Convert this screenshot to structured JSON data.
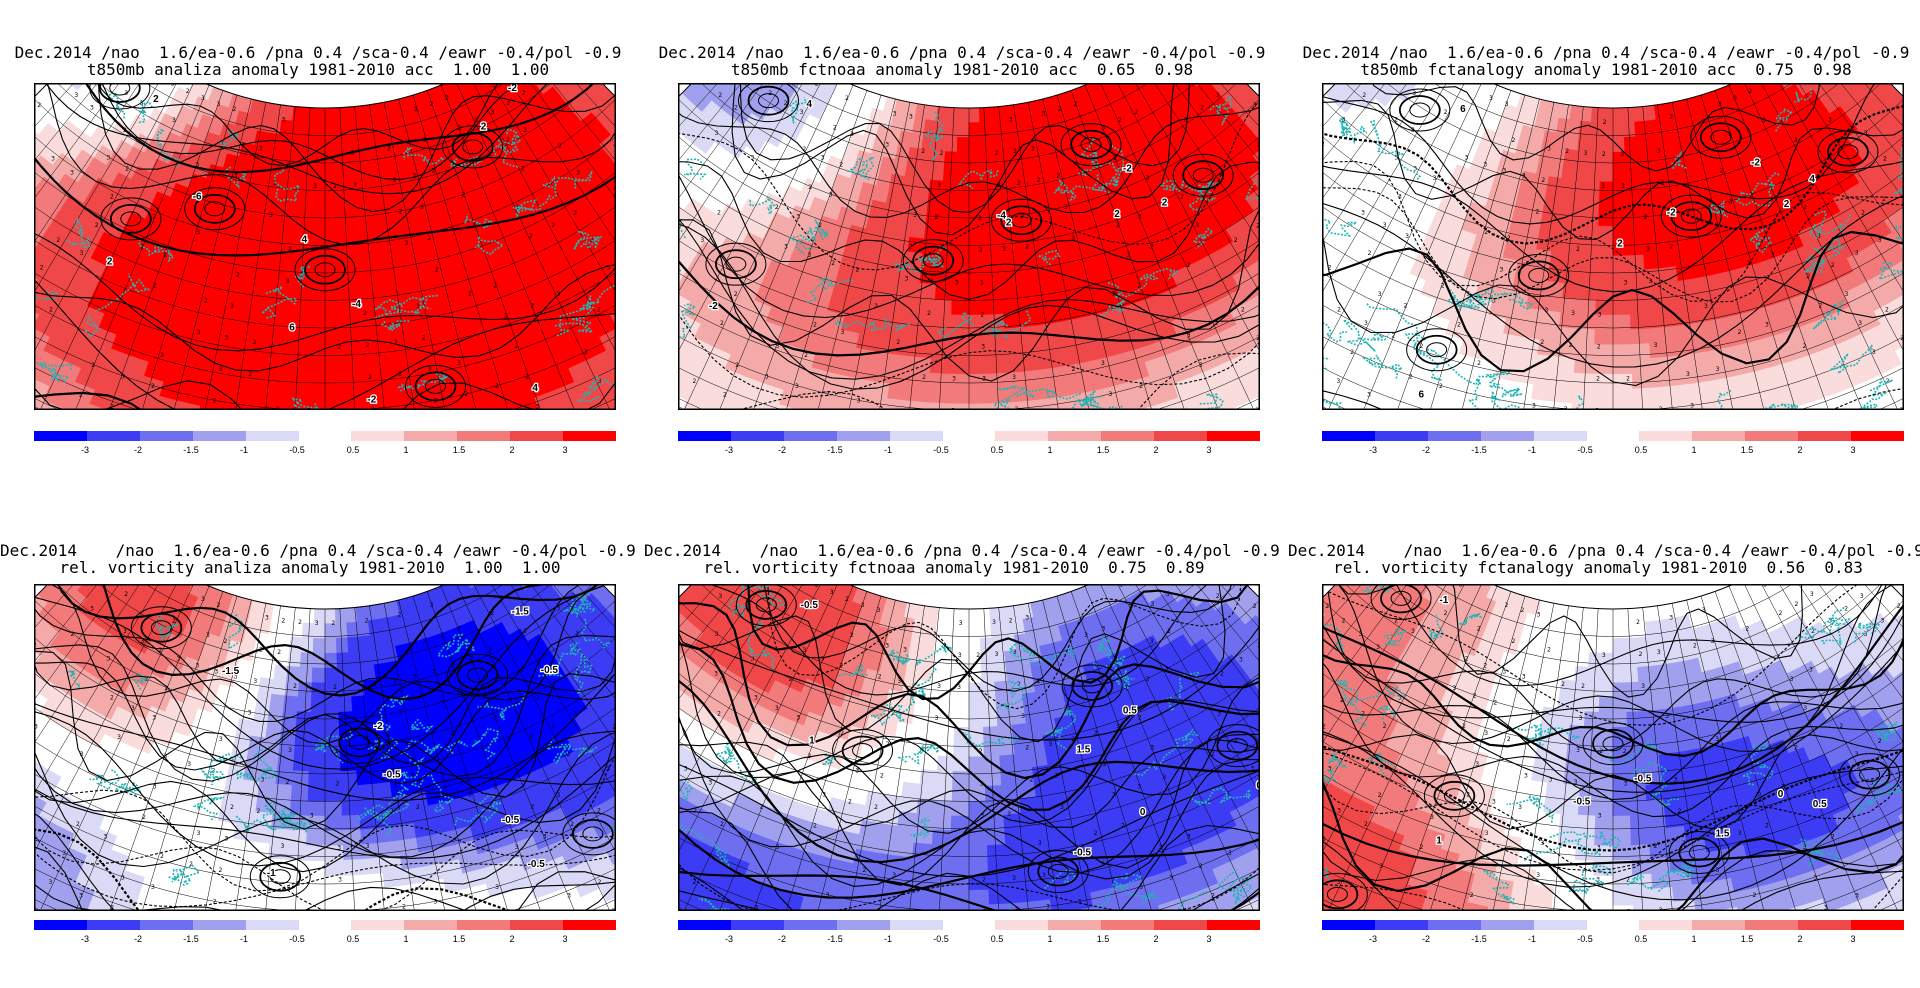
{
  "panels": [
    {
      "title_line1": "Dec.2014 /nao  1.6/ea-0.6 /pna 0.4 /sca-0.4 /eawr -0.4/pol -0.9",
      "title_line2": "t850mb analiza anomaly 1981-2010 acc  1.00  1.00",
      "field": "t850mb",
      "source": "analiza",
      "acc": [
        1.0,
        1.0
      ],
      "pattern": [
        [
          0.1,
          0.12,
          -2.6,
          0.6
        ],
        [
          0.33,
          0.3,
          2.0,
          0.7
        ],
        [
          0.5,
          0.42,
          2.6,
          0.8
        ],
        [
          0.76,
          0.18,
          2.4,
          0.7
        ],
        [
          0.62,
          0.75,
          2.0,
          0.6
        ],
        [
          0.22,
          0.4,
          0.4,
          0.5
        ]
      ],
      "contour_labels": [
        "-4",
        "-6",
        "-4",
        "-2",
        "-2",
        "2",
        "2",
        "4",
        "6",
        "2",
        "4"
      ]
    },
    {
      "title_line1": "Dec.2014 /nao  1.6/ea-0.6 /pna 0.4 /sca-0.4 /eawr -0.4/pol -0.9",
      "title_line2": "t850mb fctnoaa anomaly 1981-2010 acc  0.65  0.98",
      "field": "t850mb",
      "source": "fctnoaa",
      "acc": [
        0.65,
        0.98
      ],
      "pattern": [
        [
          0.12,
          0.14,
          -2.2,
          0.6
        ],
        [
          0.58,
          0.3,
          1.8,
          0.7
        ],
        [
          0.72,
          0.15,
          2.4,
          0.6
        ],
        [
          0.45,
          0.4,
          1.1,
          0.8
        ],
        [
          0.86,
          0.35,
          1.0,
          0.5
        ],
        [
          0.2,
          0.55,
          0.6,
          0.5
        ]
      ],
      "contour_labels": [
        "-6",
        "-4",
        "-2",
        "2",
        "2",
        "-2",
        "4",
        "2"
      ]
    },
    {
      "title_line1": "Dec.2014 /nao  1.6/ea-0.6 /pna 0.4 /sca-0.4 /eawr -0.4/pol -0.9",
      "title_line2": "t850mb fctanalogy anomaly 1981-2010 acc  0.75  0.98",
      "field": "t850mb",
      "source": "fctanalogy",
      "acc": [
        0.75,
        0.98
      ],
      "pattern": [
        [
          0.14,
          0.15,
          -1.0,
          0.6
        ],
        [
          0.62,
          0.3,
          1.6,
          0.7
        ],
        [
          0.7,
          0.12,
          2.2,
          0.6
        ],
        [
          0.4,
          0.45,
          0.8,
          0.6
        ],
        [
          0.88,
          0.3,
          0.7,
          0.5
        ],
        [
          0.3,
          0.7,
          -0.5,
          0.5
        ]
      ],
      "contour_labels": [
        "-4",
        "-2",
        "-2",
        "2",
        "4",
        "6",
        "6",
        "2"
      ]
    },
    {
      "title_line1": "Dec.2014    /nao  1.6/ea-0.6 /pna 0.4 /sca-0.4 /eawr -0.4/pol -0.9",
      "title_line2": "rel. vorticity analiza anomaly 1981-2010  1.00  1.00",
      "field": "rel. vorticity",
      "source": "analiza",
      "acc": [
        1.0,
        1.0
      ],
      "pattern": [
        [
          0.2,
          0.15,
          2.6,
          0.6
        ],
        [
          0.1,
          0.9,
          -2.4,
          0.6
        ],
        [
          0.55,
          0.35,
          -2.6,
          0.5
        ],
        [
          0.75,
          0.25,
          -2.4,
          0.6
        ],
        [
          0.8,
          0.75,
          -1.8,
          0.6
        ],
        [
          0.45,
          0.7,
          1.2,
          0.6
        ],
        [
          0.6,
          0.95,
          1.6,
          0.5
        ]
      ],
      "contour_labels": [
        "1.5",
        "-2",
        "-0.5",
        "-1.5",
        "-0.5",
        "0.5",
        "1",
        "-1.5",
        "0.5",
        "-2",
        "-0.5",
        "-0.5",
        "-1"
      ]
    },
    {
      "title_line1": "Dec.2014    /nao  1.6/ea-0.6 /pna 0.4 /sca-0.4 /eawr -0.4/pol -0.9",
      "title_line2": "rel. vorticity fctnoaa anomaly 1981-2010  0.75  0.89",
      "field": "rel. vorticity",
      "source": "fctnoaa",
      "acc": [
        0.75,
        0.89
      ],
      "pattern": [
        [
          0.12,
          0.15,
          2.6,
          0.6
        ],
        [
          0.15,
          0.85,
          -2.4,
          0.6
        ],
        [
          0.7,
          0.25,
          -2.0,
          0.6
        ],
        [
          0.6,
          0.7,
          -1.4,
          0.5
        ],
        [
          0.35,
          0.4,
          0.8,
          0.6
        ],
        [
          0.85,
          0.55,
          -1.0,
          0.5
        ]
      ],
      "contour_labels": [
        "-3",
        "-0.5",
        "0.5",
        "0",
        "1",
        "0.5",
        "-0.5",
        "-0.5",
        "1.5",
        "-0.5"
      ]
    },
    {
      "title_line1": "Dec.2014    /nao  1.6/ea-0.6 /pna 0.4 /sca-0.4 /eawr -0.4/pol -0.9",
      "title_line2": "rel. vorticity fctanalogy anomaly 1981-2010  0.56  0.83",
      "field": "rel. vorticity",
      "source": "fctanalogy",
      "acc": [
        0.56,
        0.83
      ],
      "pattern": [
        [
          0.1,
          0.15,
          1.6,
          0.6
        ],
        [
          0.22,
          0.9,
          2.2,
          0.6
        ],
        [
          0.5,
          0.35,
          -1.6,
          0.5
        ],
        [
          0.6,
          0.65,
          -1.4,
          0.5
        ],
        [
          0.82,
          0.6,
          -1.0,
          0.5
        ],
        [
          0.3,
          0.55,
          0.8,
          0.5
        ]
      ],
      "contour_labels": [
        "1.5",
        "-1.5",
        "-0.5",
        "0",
        "0.5",
        "1",
        "-1",
        "-0.5",
        "-0.5",
        "1.5",
        "1.5"
      ]
    }
  ],
  "colorbar": {
    "negative_labels": [
      "-3",
      "-2",
      "-1.5",
      "-1",
      "-0.5"
    ],
    "positive_labels": [
      "0.5",
      "1",
      "1.5",
      "2",
      "3"
    ],
    "negative_colors": [
      "#0000ff",
      "#3c3cf5",
      "#6e6ef0",
      "#a0a0ee",
      "#dadaf6"
    ],
    "positive_colors": [
      "#fadcdc",
      "#f5aaaa",
      "#f27a7a",
      "#f04848",
      "#ff0000"
    ]
  },
  "colors": {
    "coastline": "#1fb5b5",
    "contour": "#000000",
    "grid": "#000000",
    "frame": "#000000"
  }
}
